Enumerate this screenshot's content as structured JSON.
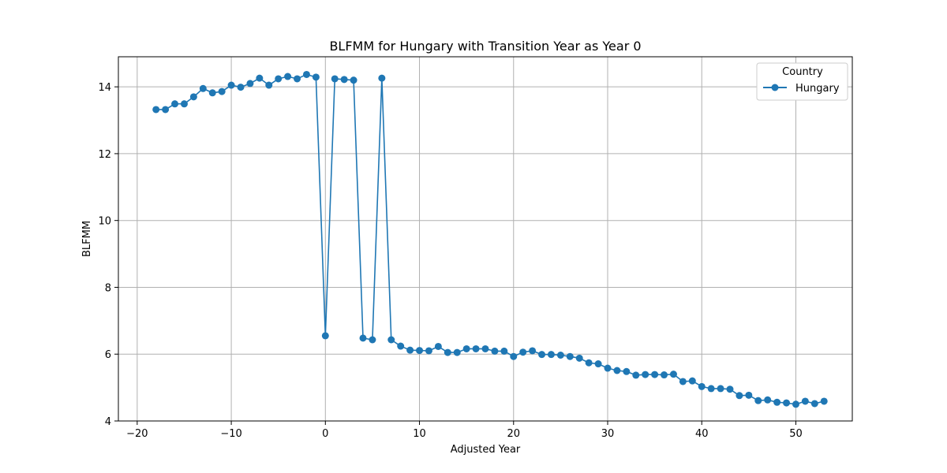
{
  "chart_data": {
    "type": "line",
    "title": "BLFMM for Hungary with Transition Year as Year 0",
    "xlabel": "Adjusted Year",
    "ylabel": "BLFMM",
    "xlim": [
      -22,
      56
    ],
    "ylim": [
      4,
      14.9
    ],
    "xticks": [
      -20,
      -10,
      0,
      10,
      20,
      30,
      40,
      50
    ],
    "yticks": [
      4,
      6,
      8,
      10,
      12,
      14
    ],
    "xtick_labels": [
      "−20",
      "−10",
      "0",
      "10",
      "20",
      "30",
      "40",
      "50"
    ],
    "ytick_labels": [
      "4",
      "6",
      "8",
      "10",
      "12",
      "14"
    ],
    "grid": true,
    "legend": {
      "title": "Country",
      "placement": "top-right"
    },
    "marker": "circle",
    "series": [
      {
        "name": "Hungary",
        "color": "#1f77b4",
        "x": [
          -18,
          -17,
          -16,
          -15,
          -14,
          -13,
          -12,
          -11,
          -10,
          -9,
          -8,
          -7,
          -6,
          -5,
          -4,
          -3,
          -2,
          -1,
          0,
          1,
          2,
          3,
          4,
          5,
          6,
          7,
          8,
          9,
          10,
          11,
          12,
          13,
          14,
          15,
          16,
          17,
          18,
          19,
          20,
          21,
          22,
          23,
          24,
          25,
          26,
          27,
          28,
          29,
          30,
          31,
          32,
          33,
          34,
          35,
          36,
          37,
          38,
          39,
          40,
          41,
          42,
          43,
          44,
          45,
          46,
          47,
          48,
          49,
          50,
          51,
          52,
          53
        ],
        "y": [
          13.32,
          13.32,
          13.49,
          13.49,
          13.7,
          13.95,
          13.82,
          13.86,
          14.05,
          13.99,
          14.1,
          14.26,
          14.05,
          14.24,
          14.31,
          14.24,
          14.37,
          14.29,
          6.55,
          14.24,
          14.22,
          14.2,
          6.48,
          6.43,
          14.26,
          6.43,
          6.24,
          6.12,
          6.11,
          6.1,
          6.23,
          6.05,
          6.05,
          6.16,
          6.16,
          6.16,
          6.09,
          6.09,
          5.93,
          6.06,
          6.1,
          5.99,
          5.99,
          5.97,
          5.93,
          5.88,
          5.74,
          5.71,
          5.58,
          5.51,
          5.48,
          5.37,
          5.39,
          5.39,
          5.38,
          5.4,
          5.18,
          5.2,
          5.03,
          4.97,
          4.97,
          4.95,
          4.76,
          4.77,
          4.61,
          4.63,
          4.56,
          4.54,
          4.5,
          4.59,
          4.52,
          4.59
        ]
      }
    ]
  }
}
